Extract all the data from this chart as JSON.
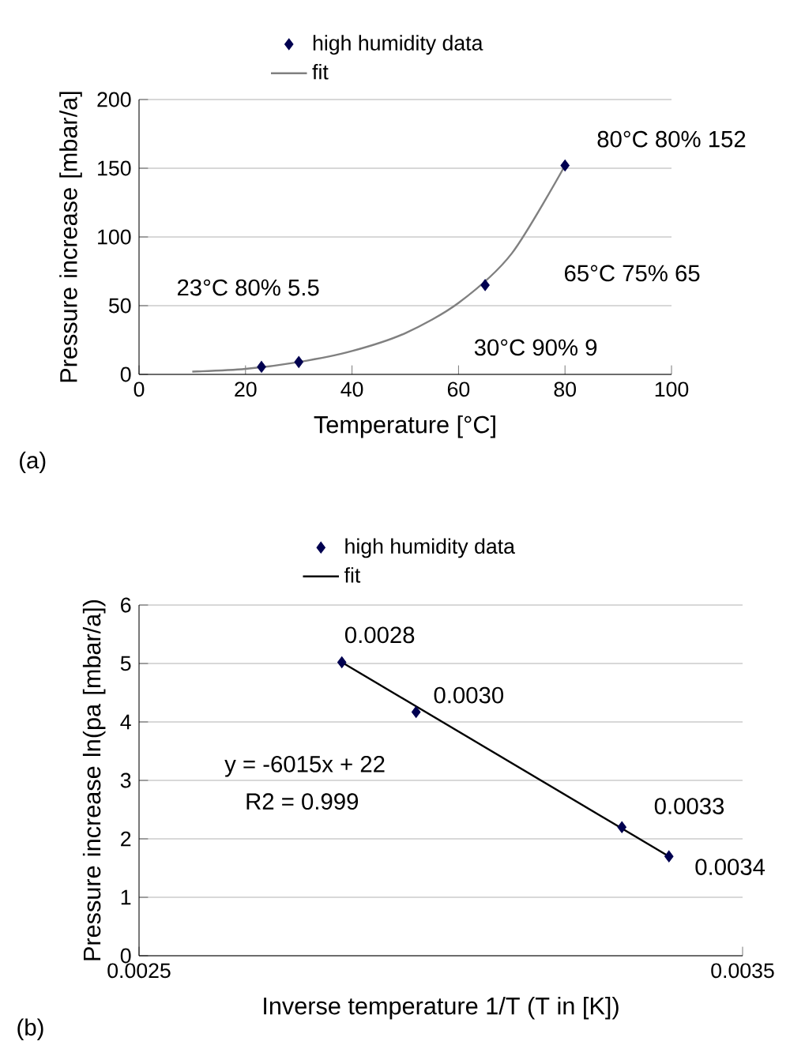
{
  "chart_data": [
    {
      "type": "scatter",
      "xlabel": "Temperature [°C]",
      "ylabel": "Pressure increase [mbar/a]",
      "xlim": [
        0,
        100
      ],
      "ylim": [
        0,
        200
      ],
      "xticks": [
        0,
        20,
        40,
        60,
        80,
        100
      ],
      "yticks": [
        0,
        50,
        100,
        150,
        200
      ],
      "grid": "y",
      "legend": "top",
      "series": [
        {
          "name": "high humidity data",
          "marker": "diamond",
          "color": "#000050",
          "x": [
            23,
            30,
            65,
            80
          ],
          "values": [
            5.5,
            9,
            65,
            152
          ]
        },
        {
          "name": "fit",
          "type": "line",
          "marker": "none",
          "color": "#808080",
          "x": [
            10,
            20,
            30,
            40,
            50,
            60,
            70,
            80
          ],
          "values": [
            2,
            4,
            9,
            17,
            30,
            52,
            88,
            152
          ]
        }
      ],
      "annotations": [
        "80°C 80% 152",
        "23°C 80% 5.5",
        "65°C 75% 65",
        "30°C 90% 9",
        "(a)"
      ]
    },
    {
      "type": "scatter",
      "xlabel": "Inverse temperature 1/T (T in [K])",
      "ylabel": "Pressure increase ln(pa [mbar/a])",
      "xlim": [
        0.0025,
        0.0035
      ],
      "ylim": [
        0,
        6
      ],
      "xticks": [
        0.0025,
        0.0035
      ],
      "yticks": [
        0,
        1,
        2,
        3,
        4,
        5,
        6
      ],
      "grid": "y",
      "legend": "top",
      "series": [
        {
          "name": "high humidity data",
          "marker": "diamond",
          "color": "#000050",
          "x": [
            0.002836,
            0.002959,
            0.0033,
            0.003378
          ],
          "values": [
            5.02,
            4.17,
            2.2,
            1.7
          ]
        },
        {
          "name": "fit",
          "type": "line",
          "marker": "none",
          "color": "#000000",
          "x": [
            0.002836,
            0.003378
          ],
          "values": [
            5.02,
            1.7
          ]
        }
      ],
      "annotations": [
        {
          "text": "0.0028",
          "x": 0.002836,
          "y": 5.02
        },
        {
          "text": "0.0030",
          "x": 0.002959,
          "y": 4.17
        },
        {
          "text": "0.0033",
          "x": 0.0033,
          "y": 2.2
        },
        {
          "text": "0.0034",
          "x": 0.003378,
          "y": 1.7
        },
        "y = -6015x + 22",
        "R2 = 0.999",
        "(b)"
      ]
    }
  ]
}
